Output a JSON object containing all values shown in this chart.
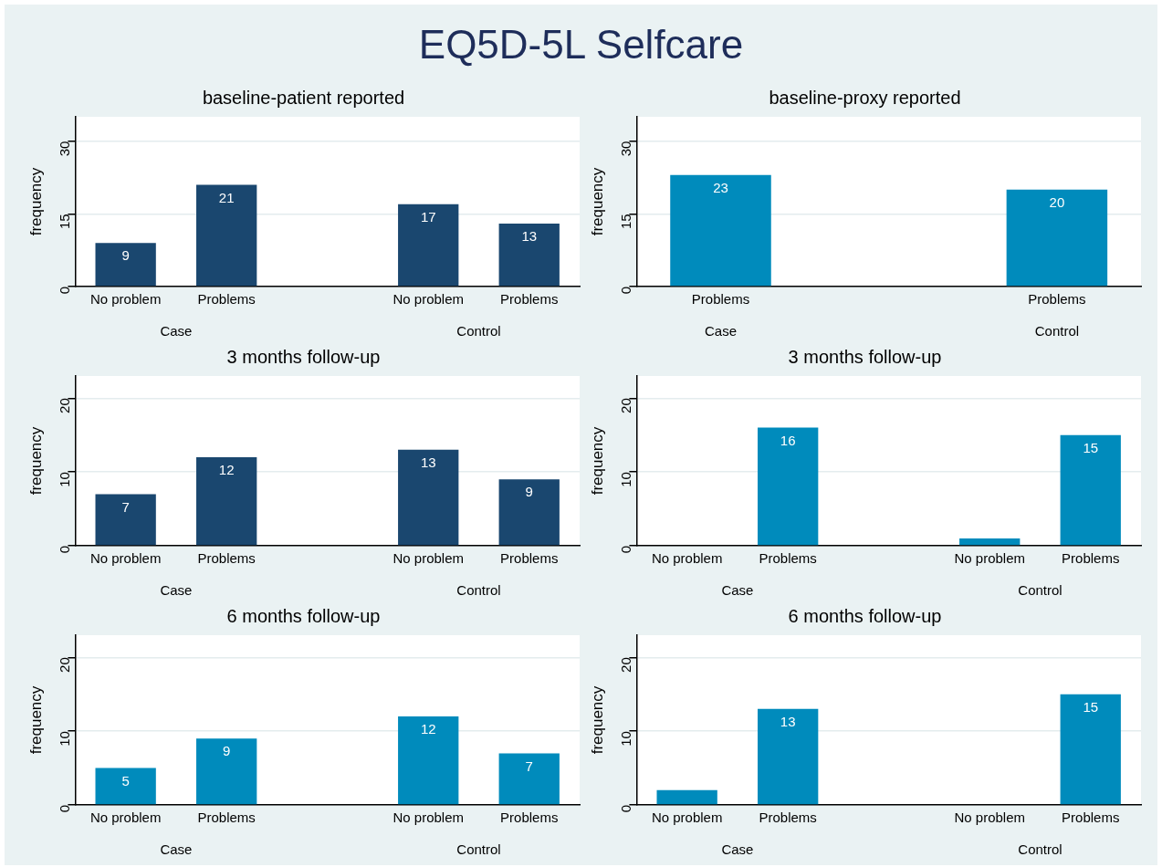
{
  "chart_data": [
    {
      "type": "other",
      "title": "EQ5D-5L Selfcare"
    },
    {
      "type": "bar",
      "title": "baseline-patient reported",
      "ylabel": "frequency",
      "categories": [
        "No problem",
        "Problems",
        null,
        "No problem",
        "Problems"
      ],
      "values": [
        9,
        21,
        null,
        17,
        13
      ],
      "value_labels": [
        "9",
        "21",
        null,
        "17",
        "13"
      ],
      "color": "#1a476f",
      "ylim": [
        0,
        35
      ],
      "yticks": [
        0,
        15,
        30
      ],
      "grid": "y",
      "annotations": [
        "Case",
        "Control"
      ]
    },
    {
      "type": "bar",
      "title": "baseline-proxy reported",
      "ylabel": "frequency",
      "categories": [
        "Problems",
        null,
        "Problems"
      ],
      "values": [
        23,
        null,
        20
      ],
      "value_labels": [
        "23",
        null,
        "20"
      ],
      "color": "#008bbc",
      "ylim": [
        0,
        35
      ],
      "yticks": [
        0,
        15,
        30
      ],
      "grid": "y",
      "annotations": [
        "Case",
        "Control"
      ]
    },
    {
      "type": "bar",
      "title": "3 months follow-up",
      "ylabel": "frequency",
      "categories": [
        "No problem",
        "Problems",
        null,
        "No problem",
        "Problems"
      ],
      "values": [
        7,
        12,
        null,
        13,
        9
      ],
      "value_labels": [
        "7",
        "12",
        null,
        "13",
        "9"
      ],
      "color": "#1a476f",
      "ylim": [
        0,
        23
      ],
      "yticks": [
        0,
        10,
        20
      ],
      "grid": "y",
      "annotations": [
        "Case",
        "Control"
      ]
    },
    {
      "type": "bar",
      "title": "3 months follow-up",
      "ylabel": "frequency",
      "categories": [
        "No problem",
        "Problems",
        null,
        "No problem",
        "Problems"
      ],
      "values": [
        0,
        16,
        null,
        1,
        15
      ],
      "value_labels": [
        null,
        "16",
        null,
        null,
        "15"
      ],
      "color": "#008bbc",
      "ylim": [
        0,
        23
      ],
      "yticks": [
        0,
        10,
        20
      ],
      "grid": "y",
      "annotations": [
        "Case",
        "Control"
      ]
    },
    {
      "type": "bar",
      "title": "6 months follow-up",
      "ylabel": "frequency",
      "categories": [
        "No problem",
        "Problems",
        null,
        "No problem",
        "Problems"
      ],
      "values": [
        5,
        9,
        null,
        12,
        7
      ],
      "value_labels": [
        "5",
        "9",
        null,
        "12",
        "7"
      ],
      "color": "#008bbc",
      "ylim": [
        0,
        23
      ],
      "yticks": [
        0,
        10,
        20
      ],
      "grid": "y",
      "annotations": [
        "Case",
        "Control"
      ]
    },
    {
      "type": "bar",
      "title": "6 months follow-up",
      "ylabel": "frequency",
      "categories": [
        "No problem",
        "Problems",
        null,
        "No problem",
        "Problems"
      ],
      "values": [
        2,
        13,
        null,
        0,
        15
      ],
      "value_labels": [
        null,
        "13",
        null,
        null,
        "15"
      ],
      "color": "#008bbc",
      "ylim": [
        0,
        23
      ],
      "yticks": [
        0,
        10,
        20
      ],
      "grid": "y",
      "annotations": [
        "Case",
        "Control"
      ]
    }
  ]
}
